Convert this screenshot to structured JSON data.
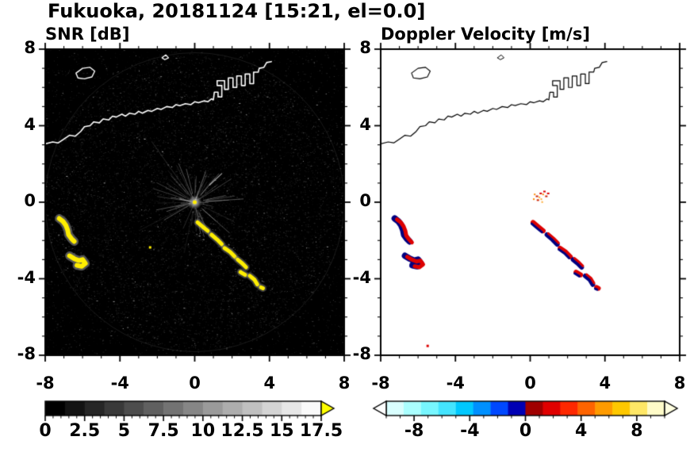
{
  "title": "Fukuoka, 20181124 [15:21, el=0.0]",
  "panels": {
    "left": {
      "title": "SNR [dB]"
    },
    "right": {
      "title": "Doppler Velocity [m/s]"
    }
  },
  "axis": {
    "x_ticks": [
      "-8",
      "-4",
      "0",
      "4",
      "8"
    ],
    "x_tick_values": [
      -8,
      -4,
      0,
      4,
      8
    ],
    "y_ticks": [
      "8",
      "4",
      "0",
      "-4",
      "-8"
    ],
    "y_tick_values": [
      8,
      4,
      0,
      -4,
      -8
    ]
  },
  "colorbars": {
    "snr": {
      "tick_labels": [
        "0",
        "2.5",
        "5",
        "7.5",
        "10",
        "12.5",
        "15",
        "17.5"
      ],
      "tick_values": [
        0,
        2.5,
        5,
        7.5,
        10,
        12.5,
        15,
        17.5
      ],
      "range": [
        0,
        17.5
      ],
      "segments": [
        "#000000",
        "#131313",
        "#262626",
        "#393939",
        "#4d4d4d",
        "#606060",
        "#737373",
        "#868686",
        "#9a9a9a",
        "#adadad",
        "#c0c0c0",
        "#d4d4d4",
        "#e7e7e7",
        "#fafafa"
      ],
      "overflow_arrow_color": "#ffff00"
    },
    "velocity": {
      "tick_labels": [
        "-8",
        "-4",
        "0",
        "4",
        "8"
      ],
      "tick_values": [
        -8,
        -4,
        0,
        4,
        8
      ],
      "range": [
        -10,
        10
      ],
      "segments": [
        "#d9ffff",
        "#aaffff",
        "#77f6ff",
        "#44e4ff",
        "#00c8ff",
        "#0090ff",
        "#0048ff",
        "#0000b4",
        "#a00000",
        "#e00000",
        "#ff2800",
        "#ff6400",
        "#ff9b00",
        "#ffc800",
        "#ffe766",
        "#fffbc8"
      ],
      "left_arrow_color": "#ffffff",
      "right_arrow_color": "#ffffe0"
    }
  },
  "chart_data": {
    "type": "heatmap",
    "title": "Fukuoka, 20181124 [15:21, el=0.0]",
    "panels": [
      {
        "name": "snr",
        "title": "SNR [dB]",
        "xlim": [
          -8,
          8
        ],
        "ylim": [
          -8,
          8
        ],
        "background": "#000000",
        "colorbar_range": [
          0,
          17.5
        ],
        "colorbar_ticks": [
          0,
          2.5,
          5,
          7.5,
          10,
          12.5,
          15,
          17.5
        ],
        "colormap": "grayscale with yellow overflow",
        "description": "Radar SNR field: dark speckle noise over full scan circle, bright radial clutter at origin, yellow high-SNR echoes southwest and a diagonal echo line southeast of center, white coastline across the north"
      },
      {
        "name": "doppler_velocity",
        "title": "Doppler Velocity [m/s]",
        "xlim": [
          -8,
          8
        ],
        "ylim": [
          -8,
          8
        ],
        "background": "#ffffff",
        "colorbar_range": [
          -10,
          10
        ],
        "colorbar_ticks": [
          -8,
          -4,
          0,
          4,
          8
        ],
        "colormap": "diverging cyan-blue (negative) to red-yellow (positive)",
        "description": "Doppler velocity of the same echoes: mixed red (positive) and navy (negative) patches along the echo lines, small orange speckles near the origin, black coastline across the north"
      }
    ],
    "features": {
      "coastline_main": [
        [
          -8,
          3.05
        ],
        [
          -7.6,
          3.15
        ],
        [
          -7.3,
          3.1
        ],
        [
          -7.0,
          3.3
        ],
        [
          -6.7,
          3.5
        ],
        [
          -6.4,
          3.45
        ],
        [
          -6.1,
          3.7
        ],
        [
          -5.9,
          3.95
        ],
        [
          -5.6,
          4.0
        ],
        [
          -5.4,
          4.2
        ],
        [
          -5.1,
          4.15
        ],
        [
          -4.9,
          4.35
        ],
        [
          -4.6,
          4.3
        ],
        [
          -4.4,
          4.5
        ],
        [
          -4.2,
          4.45
        ],
        [
          -3.9,
          4.6
        ],
        [
          -3.7,
          4.5
        ],
        [
          -3.5,
          4.65
        ],
        [
          -3.2,
          4.6
        ],
        [
          -3.0,
          4.75
        ],
        [
          -2.8,
          4.65
        ],
        [
          -2.5,
          4.8
        ],
        [
          -2.3,
          4.75
        ],
        [
          -2.0,
          4.9
        ],
        [
          -1.8,
          4.85
        ],
        [
          -1.5,
          5.0
        ],
        [
          -1.2,
          4.95
        ],
        [
          -1.0,
          5.1
        ],
        [
          -0.8,
          5.05
        ],
        [
          -0.5,
          5.15
        ],
        [
          -0.2,
          5.1
        ],
        [
          0.0,
          5.25
        ],
        [
          0.2,
          5.2
        ],
        [
          0.5,
          5.3
        ],
        [
          0.7,
          5.25
        ],
        [
          0.9,
          5.4
        ],
        [
          1.0,
          5.35
        ],
        [
          1.05,
          5.75
        ],
        [
          1.25,
          5.75
        ],
        [
          1.25,
          5.5
        ],
        [
          1.45,
          5.5
        ],
        [
          1.45,
          6.1
        ],
        [
          1.2,
          6.1
        ],
        [
          1.2,
          6.35
        ],
        [
          1.6,
          6.35
        ],
        [
          1.6,
          5.9
        ],
        [
          1.8,
          5.9
        ],
        [
          1.8,
          6.5
        ],
        [
          2.05,
          6.5
        ],
        [
          2.05,
          6.0
        ],
        [
          2.25,
          6.0
        ],
        [
          2.25,
          6.6
        ],
        [
          2.5,
          6.6
        ],
        [
          2.5,
          6.1
        ],
        [
          2.7,
          6.1
        ],
        [
          2.7,
          6.7
        ],
        [
          2.95,
          6.7
        ],
        [
          2.95,
          6.2
        ],
        [
          3.15,
          6.2
        ],
        [
          3.15,
          6.8
        ],
        [
          3.4,
          6.8
        ],
        [
          3.45,
          7.0
        ],
        [
          3.7,
          7.05
        ],
        [
          3.85,
          7.3
        ],
        [
          4.1,
          7.35
        ]
      ],
      "island": [
        [
          -6.35,
          6.75
        ],
        [
          -6.0,
          7.0
        ],
        [
          -5.6,
          7.05
        ],
        [
          -5.35,
          6.85
        ],
        [
          -5.5,
          6.55
        ],
        [
          -5.9,
          6.45
        ],
        [
          -6.25,
          6.5
        ],
        [
          -6.35,
          6.75
        ]
      ],
      "islet": [
        [
          -1.75,
          7.55
        ],
        [
          -1.55,
          7.7
        ],
        [
          -1.4,
          7.55
        ],
        [
          -1.6,
          7.45
        ],
        [
          -1.75,
          7.55
        ]
      ],
      "echo_arc_a": [
        [
          -7.25,
          -0.85
        ],
        [
          -7.05,
          -1.0
        ],
        [
          -6.9,
          -1.2
        ],
        [
          -6.8,
          -1.45
        ],
        [
          -6.75,
          -1.7
        ],
        [
          -6.6,
          -1.9
        ],
        [
          -6.45,
          -2.05
        ]
      ],
      "echo_arc_b": [
        [
          -6.7,
          -2.8
        ],
        [
          -6.45,
          -2.95
        ],
        [
          -6.2,
          -3.05
        ],
        [
          -6.0,
          -3.0
        ],
        [
          -5.85,
          -3.2
        ],
        [
          -6.05,
          -3.35
        ],
        [
          -6.3,
          -3.3
        ]
      ],
      "echo_streak_segments": [
        [
          [
            0.15,
            -1.05
          ],
          [
            0.45,
            -1.3
          ],
          [
            0.7,
            -1.5
          ]
        ],
        [
          [
            0.9,
            -1.7
          ],
          [
            1.2,
            -1.95
          ],
          [
            1.45,
            -2.2
          ]
        ],
        [
          [
            1.6,
            -2.4
          ],
          [
            1.9,
            -2.6
          ],
          [
            2.15,
            -2.85
          ]
        ],
        [
          [
            2.3,
            -3.0
          ],
          [
            2.55,
            -3.2
          ],
          [
            2.75,
            -3.4
          ]
        ],
        [
          [
            2.45,
            -3.65
          ],
          [
            2.7,
            -3.8
          ]
        ],
        [
          [
            2.95,
            -3.85
          ],
          [
            3.2,
            -4.05
          ],
          [
            3.35,
            -4.3
          ]
        ],
        [
          [
            3.55,
            -4.45
          ],
          [
            3.65,
            -4.5
          ]
        ]
      ],
      "snr_thin_streak": [
        [
          0.8,
          0.9
        ],
        [
          1.45,
          1.5
        ]
      ],
      "snr_small_dot": [
        -2.45,
        -2.3
      ],
      "doppler_center_speckles": [
        [
          0.15,
          0.2
        ],
        [
          0.3,
          0.35
        ],
        [
          0.45,
          0.3
        ],
        [
          0.5,
          0.5
        ],
        [
          0.65,
          0.45
        ],
        [
          0.35,
          0.15
        ],
        [
          0.55,
          0.2
        ],
        [
          0.7,
          0.6
        ],
        [
          0.2,
          0.45
        ],
        [
          0.8,
          0.35
        ],
        [
          0.6,
          0.05
        ],
        [
          0.9,
          0.5
        ]
      ],
      "doppler_small_dot": [
        -5.55,
        -7.45
      ]
    },
    "echo_colors": {
      "snr_echo": "#ffee00",
      "doppler_positive": "#dd0000",
      "doppler_negative": "#000080"
    }
  }
}
